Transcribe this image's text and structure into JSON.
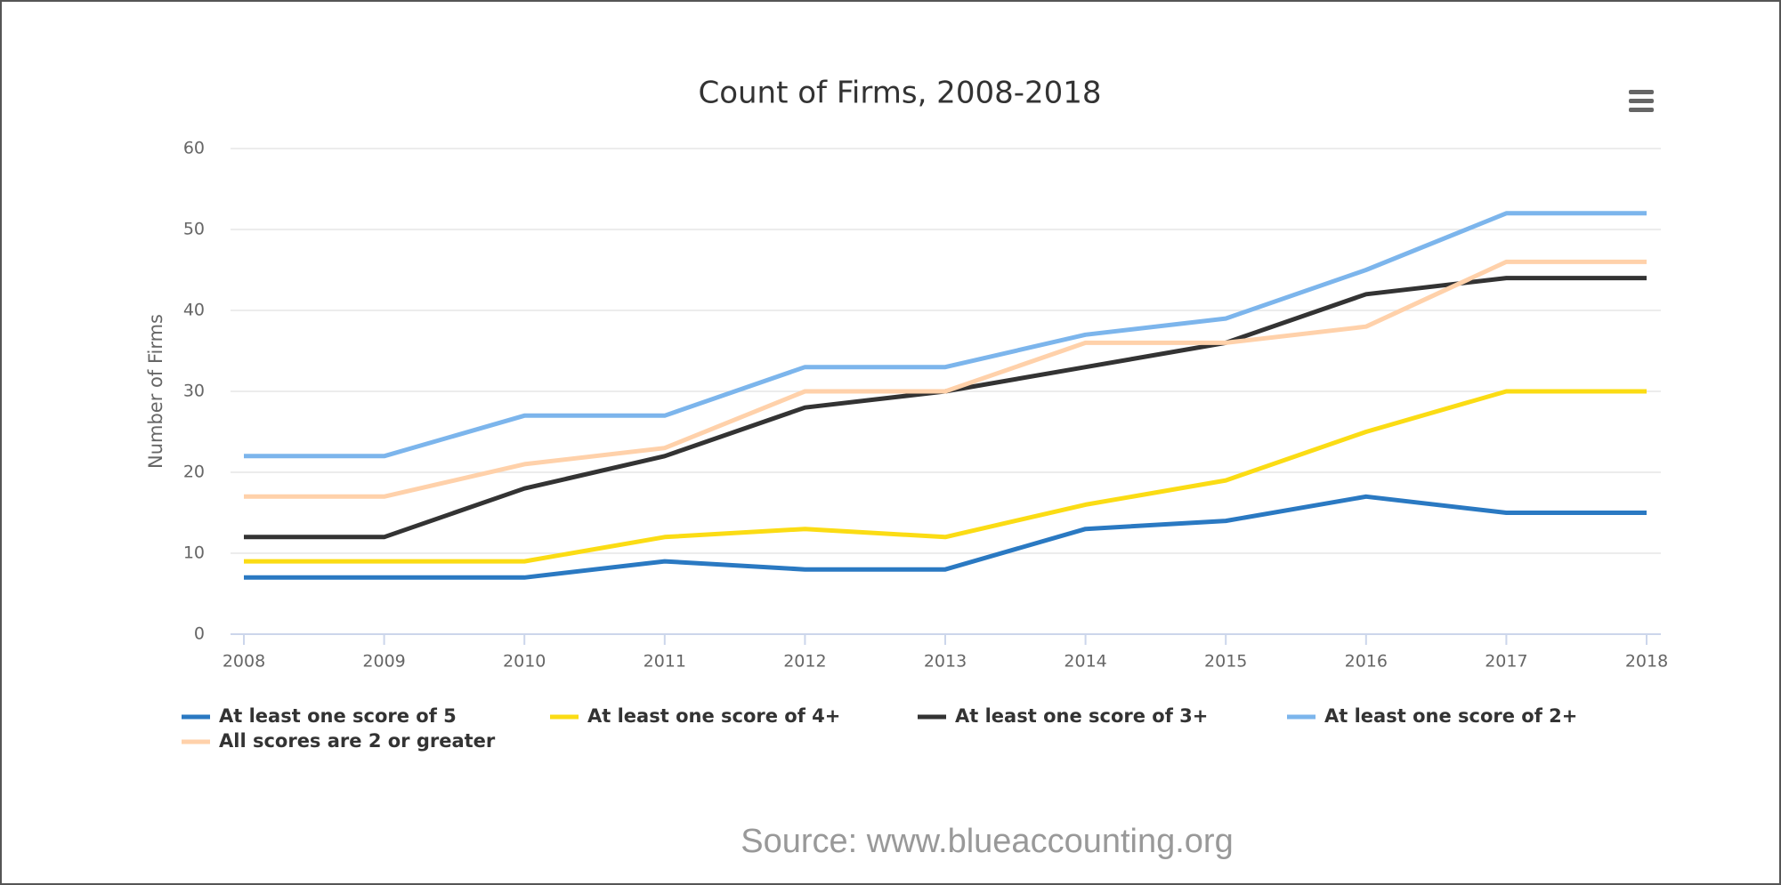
{
  "chart_data": {
    "type": "line",
    "title": "Count of Firms, 2008-2018",
    "y_label": "Number of Firms",
    "categories": [
      "2008",
      "2009",
      "2010",
      "2011",
      "2012",
      "2013",
      "2014",
      "2015",
      "2016",
      "2017",
      "2018"
    ],
    "series": [
      {
        "name": "At least one score of 5",
        "color": "#2a79c2",
        "values": [
          7,
          7,
          7,
          9,
          8,
          8,
          13,
          14,
          17,
          15,
          15
        ]
      },
      {
        "name": "At least one score of 4+",
        "color": "#fbdc14",
        "values": [
          9,
          9,
          9,
          12,
          13,
          12,
          16,
          19,
          25,
          30,
          30
        ]
      },
      {
        "name": "At least one score of 3+",
        "color": "#333333",
        "values": [
          12,
          12,
          18,
          22,
          28,
          30,
          33,
          36,
          42,
          44,
          44
        ]
      },
      {
        "name": "At least one score of 2+",
        "color": "#7cb5ec",
        "values": [
          22,
          22,
          27,
          27,
          33,
          33,
          37,
          39,
          45,
          52,
          52
        ]
      },
      {
        "name": "All scores are 2 or greater",
        "color": "#ffd1aa",
        "values": [
          17,
          17,
          21,
          23,
          30,
          30,
          36,
          36,
          38,
          46,
          46
        ]
      }
    ],
    "ylim": [
      0,
      60
    ],
    "yticks": [
      0,
      10,
      20,
      30,
      40,
      50,
      60
    ],
    "grid": true,
    "legend": "bottom-left",
    "source": "Source: www.blueaccounting.org"
  }
}
